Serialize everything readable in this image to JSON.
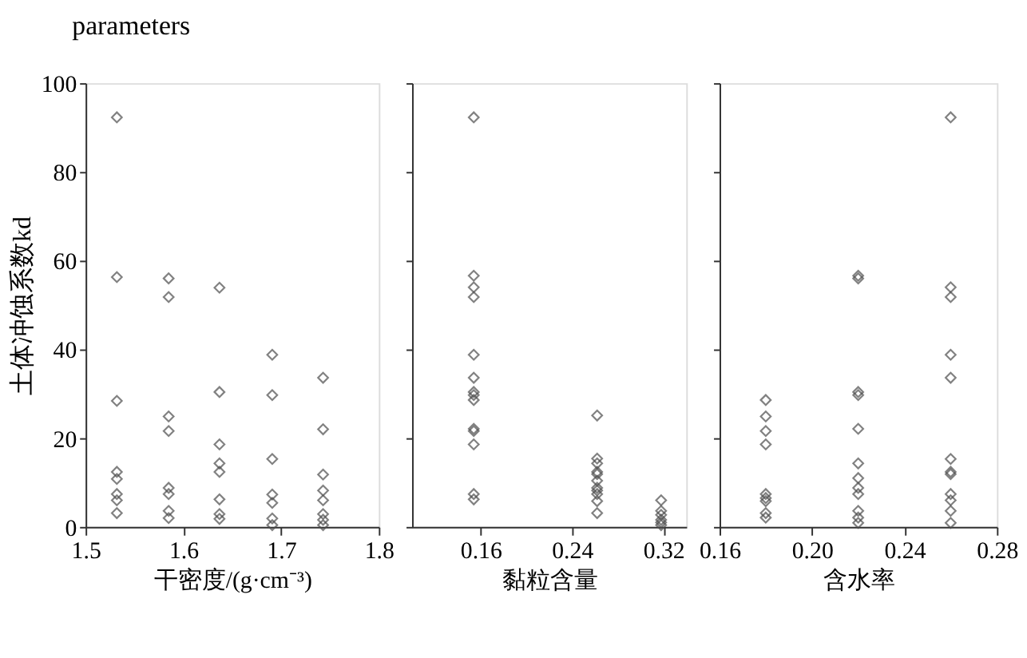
{
  "chart_data": [
    {
      "type": "scatter",
      "title": "parameters",
      "xlabel": "干密度/(g·cm⁻³)",
      "ylabel": "土体冲蚀系数kd",
      "marker": "diamond",
      "xlim": [
        1.5,
        1.8
      ],
      "xticks": [
        1.5,
        1.6,
        1.7,
        1.8
      ],
      "ylim": [
        0,
        100
      ],
      "yticks": [
        0,
        20,
        40,
        60,
        80,
        100
      ],
      "series": [
        {
          "color": "#4d4d4d",
          "x": [
            1.532,
            1.532,
            1.532,
            1.532,
            1.532,
            1.532,
            1.532,
            1.532,
            1.585,
            1.585,
            1.585,
            1.585,
            1.585,
            1.585,
            1.585,
            1.585,
            1.637,
            1.637,
            1.637,
            1.637,
            1.637,
            1.637,
            1.637,
            1.637,
            1.691,
            1.691,
            1.691,
            1.691,
            1.691,
            1.691,
            1.691,
            1.743,
            1.743,
            1.743,
            1.743,
            1.743,
            1.743,
            1.743,
            1.743
          ],
          "values": [
            92.3,
            56.3,
            28.4,
            12.4,
            10.8,
            7.4,
            6.0,
            3.1,
            56.0,
            51.8,
            24.9,
            21.6,
            8.8,
            7.4,
            3.6,
            2.0,
            53.9,
            30.4,
            18.6,
            14.3,
            12.4,
            6.2,
            2.9,
            1.8,
            38.8,
            29.7,
            15.3,
            7.3,
            5.4,
            1.9,
            0.4,
            33.6,
            22.0,
            11.8,
            8.2,
            6.0,
            2.9,
            1.6,
            0.4
          ]
        }
      ]
    },
    {
      "type": "scatter",
      "xlabel": "黏粒含量",
      "marker": "diamond",
      "xlim": [
        0.1,
        0.34
      ],
      "xticks": [
        0.16,
        0.24,
        0.32
      ],
      "ylim": [
        0,
        100
      ],
      "yticks": [
        0,
        20,
        40,
        60,
        80,
        100
      ],
      "tick_labels": "x",
      "series": [
        {
          "color": "#4d4d4d",
          "x": [
            0.154,
            0.154,
            0.154,
            0.154,
            0.154,
            0.154,
            0.154,
            0.154,
            0.154,
            0.154,
            0.154,
            0.154,
            0.154,
            0.154,
            0.262,
            0.262,
            0.262,
            0.262,
            0.262,
            0.262,
            0.262,
            0.262,
            0.262,
            0.262,
            0.262,
            0.318,
            0.318,
            0.318,
            0.318,
            0.318,
            0.318
          ],
          "values": [
            92.3,
            56.6,
            54.0,
            51.8,
            38.8,
            33.6,
            30.4,
            29.7,
            28.6,
            22.1,
            21.6,
            18.6,
            7.4,
            6.2,
            25.1,
            15.4,
            14.3,
            12.4,
            11.9,
            10.4,
            8.8,
            8.2,
            7.4,
            5.8,
            3.1,
            6.0,
            3.6,
            2.7,
            1.6,
            1.0,
            0.4
          ]
        }
      ]
    },
    {
      "type": "scatter",
      "xlabel": "含水率",
      "marker": "diamond",
      "xlim": [
        0.16,
        0.28
      ],
      "xticks": [
        0.16,
        {
          "value": 0.2,
          "label": "0.20"
        },
        0.24,
        0.28
      ],
      "ylim": [
        0,
        100
      ],
      "yticks": [
        0,
        20,
        40,
        60,
        80,
        100
      ],
      "tick_labels": "x",
      "series": [
        {
          "color": "#4d4d4d",
          "x": [
            0.18,
            0.18,
            0.18,
            0.18,
            0.18,
            0.18,
            0.18,
            0.18,
            0.18,
            0.22,
            0.22,
            0.22,
            0.22,
            0.22,
            0.22,
            0.22,
            0.22,
            0.22,
            0.22,
            0.22,
            0.22,
            0.26,
            0.26,
            0.26,
            0.26,
            0.26,
            0.26,
            0.26,
            0.26,
            0.26,
            0.26,
            0.26,
            0.26
          ],
          "values": [
            28.6,
            24.9,
            21.6,
            18.6,
            7.4,
            6.5,
            5.8,
            3.1,
            2.1,
            56.6,
            56.0,
            30.4,
            29.7,
            22.1,
            14.3,
            11.0,
            8.8,
            7.4,
            3.6,
            2.1,
            0.9,
            92.3,
            54.0,
            51.8,
            38.8,
            33.6,
            15.3,
            12.4,
            11.9,
            7.4,
            6.0,
            3.6,
            0.9
          ]
        }
      ]
    }
  ]
}
